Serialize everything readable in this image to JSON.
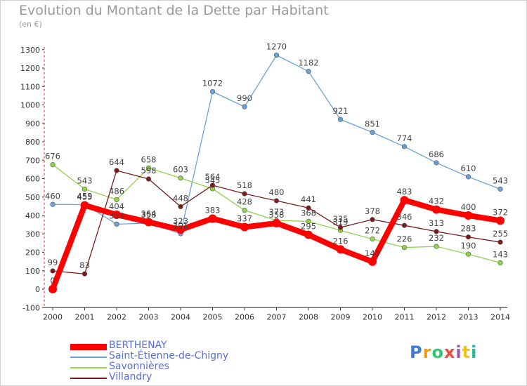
{
  "header": {
    "title": "Evolution du Montant de la Dette par Habitant",
    "subtitle": "(en €)"
  },
  "logo": {
    "text": "Proxiti"
  },
  "chart_data": {
    "type": "line",
    "title": "Evolution du Montant de la Dette par Habitant",
    "ylabel": "(en €)",
    "xlabel": "",
    "ylim": [
      -100,
      1300
    ],
    "yticks": [
      -100,
      0,
      100,
      200,
      300,
      400,
      500,
      600,
      700,
      800,
      900,
      1000,
      1100,
      1200,
      1300
    ],
    "grid": false,
    "legend": "bottom-left",
    "x": [
      "2000",
      "2001",
      "2002",
      "2003",
      "2004",
      "2005",
      "2006",
      "2007",
      "2008",
      "2009",
      "2010",
      "2011",
      "2012",
      "2013",
      "2014"
    ],
    "series": [
      {
        "name": "BERTHENAY",
        "color": "#ff0000",
        "values": [
          0,
          455,
          404,
          364,
          323,
          383,
          337,
          358,
          295,
          216,
          149,
          483,
          432,
          400,
          372
        ]
      },
      {
        "name": "Saint-Étienne-de-Chigny",
        "color": "#6aa2d8",
        "values": [
          460,
          459,
          353,
          358,
          301,
          1072,
          990,
          1270,
          1182,
          921,
          851,
          774,
          686,
          610,
          543
        ]
      },
      {
        "name": "Savonnières",
        "color": "#8fd44a",
        "values": [
          676,
          543,
          486,
          658,
          603,
          545,
          428,
          373,
          368,
          319,
          272,
          226,
          232,
          190,
          143
        ]
      },
      {
        "name": "Villandry",
        "color": "#7a1a1a",
        "values": [
          99,
          83,
          644,
          598,
          448,
          564,
          518,
          480,
          441,
          335,
          378,
          346,
          313,
          283,
          255
        ]
      }
    ]
  }
}
